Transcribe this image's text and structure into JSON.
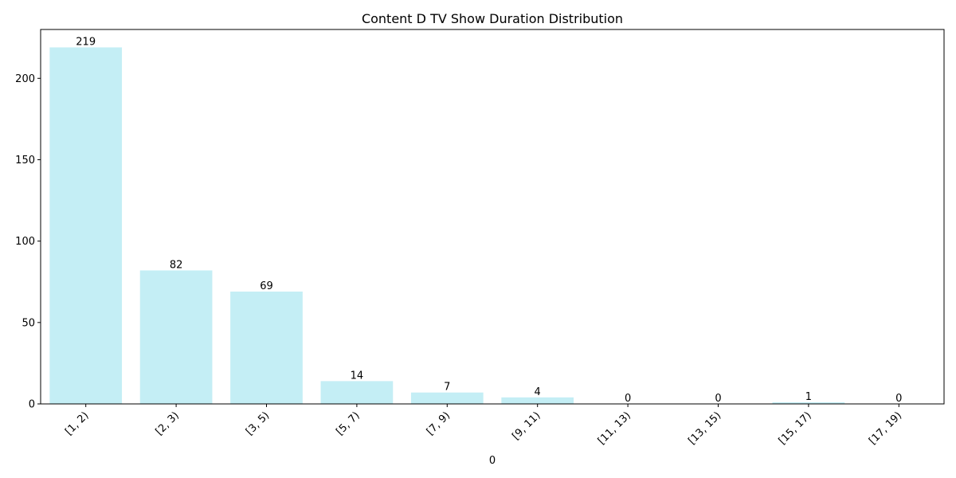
{
  "chart_data": {
    "type": "bar",
    "title": "Content D TV Show Duration Distribution",
    "xlabel": "0",
    "ylabel": "",
    "categories": [
      "[1, 2)",
      "[2, 3)",
      "[3, 5)",
      "[5, 7)",
      "[7, 9)",
      "[9, 11)",
      "[11, 13)",
      "[13, 15)",
      "[15, 17)",
      "[17, 19)"
    ],
    "values": [
      219,
      82,
      69,
      14,
      7,
      4,
      0,
      0,
      1,
      0
    ],
    "ylim": [
      0,
      230
    ],
    "yticks": [
      0,
      50,
      100,
      150,
      200
    ],
    "grid": false,
    "legend": "none",
    "bar_color": "#c4eef5"
  }
}
